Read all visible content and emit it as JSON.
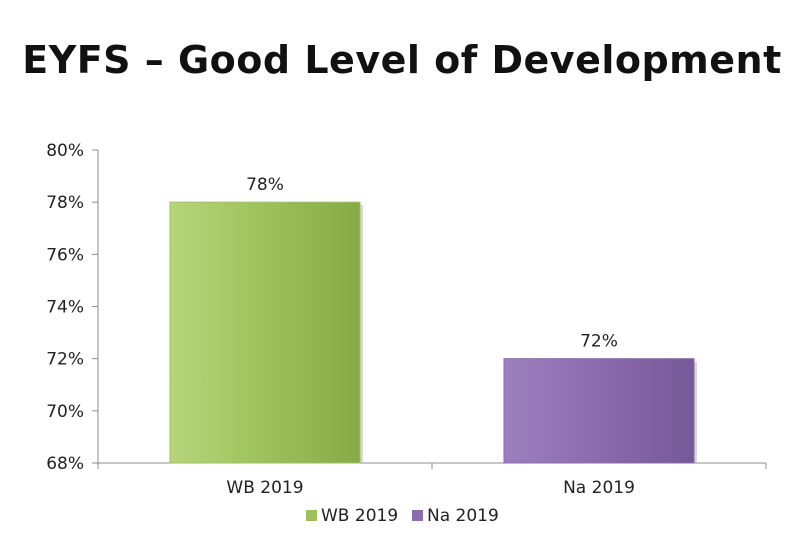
{
  "chart_data": {
    "type": "bar",
    "title": "EYFS – Good Level of Development",
    "categories": [
      "WB 2019",
      "Na 2019"
    ],
    "values": [
      78,
      72
    ],
    "value_labels": [
      "78%",
      "72%"
    ],
    "colors": [
      "#9dc15a",
      "#8b6aae"
    ],
    "ylim": [
      68,
      80
    ],
    "yticks": [
      68,
      70,
      72,
      74,
      76,
      78,
      80
    ],
    "ytick_labels": [
      "68%",
      "70%",
      "72%",
      "74%",
      "76%",
      "78%",
      "80%"
    ],
    "grid": false,
    "legend_position": "bottom",
    "legend": [
      {
        "label": "WB 2019",
        "color": "#9dc15a"
      },
      {
        "label": "Na 2019",
        "color": "#8b6aae"
      }
    ]
  }
}
